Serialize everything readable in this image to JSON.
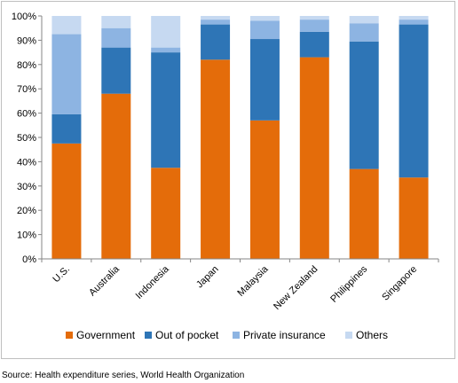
{
  "chart_data": {
    "type": "bar",
    "stacked": true,
    "percent_stacked": true,
    "categories": [
      "U.S.",
      "Australia",
      "Indonesia",
      "Japan",
      "Malaysia",
      "New Zealand",
      "Philippines",
      "Singapore"
    ],
    "series": [
      {
        "name": "Government",
        "color": "#e46c0a",
        "values": [
          47.5,
          68,
          37.5,
          82,
          57,
          83,
          37,
          33.5
        ]
      },
      {
        "name": "Out of pocket",
        "color": "#2e75b6",
        "values": [
          12,
          19,
          47.5,
          14.5,
          33.5,
          10.5,
          52.5,
          63
        ]
      },
      {
        "name": "Private insurance",
        "color": "#8db4e2",
        "values": [
          33,
          8,
          2,
          2,
          7.5,
          5,
          7.5,
          2
        ]
      },
      {
        "name": "Others",
        "color": "#c6d9f1",
        "values": [
          7.5,
          5,
          13,
          1.5,
          2,
          1.5,
          3,
          1.5
        ]
      }
    ],
    "ylim": [
      0,
      100
    ],
    "yticks": [
      "0%",
      "10%",
      "20%",
      "30%",
      "40%",
      "50%",
      "60%",
      "70%",
      "80%",
      "90%",
      "100%"
    ],
    "grid": false,
    "legend_position": "bottom",
    "xlabel": "",
    "ylabel": ""
  },
  "source_note": "Source: Health expenditure series, World Health Organization"
}
